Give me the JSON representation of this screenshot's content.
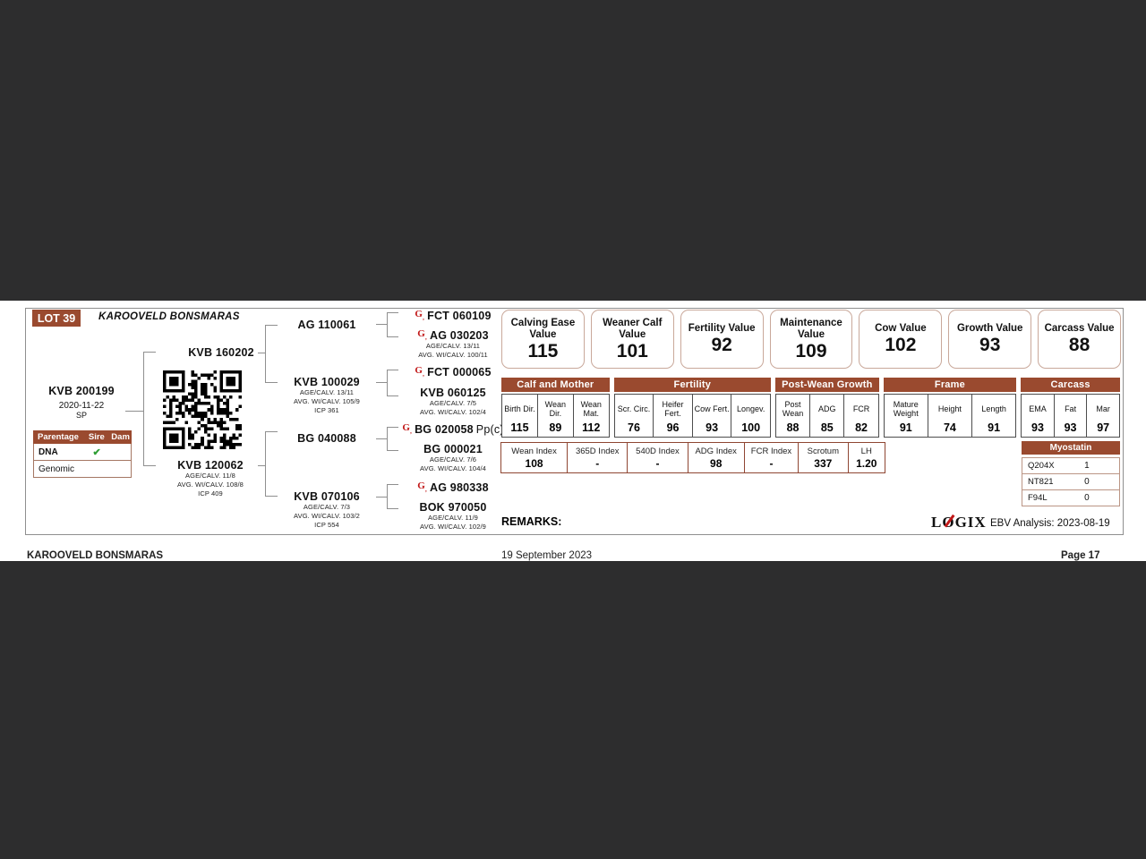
{
  "header": {
    "lot": "LOT 39",
    "title": "KAROOVELD BONSMARAS"
  },
  "pedigree": {
    "animal": {
      "name": "KVB 200199",
      "dob": "2020-11-22",
      "status": "SP"
    },
    "sire": {
      "name": "KVB 160202"
    },
    "dam": {
      "name": "KVB 120062",
      "line1": "AGE/CALV. 11/8",
      "line2": "AVG. WI/CALV. 108/8",
      "line3": "ICP 409"
    },
    "gen3": [
      {
        "name": "AG 110061"
      },
      {
        "name": "KVB 100029",
        "line1": "AGE/CALV. 13/11",
        "line2": "AVG. WI/CALV. 105/9",
        "line3": "ICP 361"
      },
      {
        "name": "BG 040088"
      },
      {
        "name": "KVB 070106",
        "line1": "AGE/CALV. 7/3",
        "line2": "AVG. WI/CALV. 103/2",
        "line3": "ICP 554"
      }
    ],
    "gen4": [
      {
        "name": "FCT 060109",
        "suffix": ""
      },
      {
        "name": "AG 030203",
        "suffix": "",
        "line1": "AGE/CALV. 13/11",
        "line2": "AVG. WI/CALV. 100/11"
      },
      {
        "name": "FCT 000065",
        "suffix": ""
      },
      {
        "name": "KVB 060125",
        "suffix": "",
        "line1": "AGE/CALV. 7/5",
        "line2": "AVG. WI/CALV. 102/4"
      },
      {
        "name": "BG 020058",
        "suffix": "Pp(c)"
      },
      {
        "name": "BG 000021",
        "suffix": "",
        "line1": "AGE/CALV. 7/6",
        "line2": "AVG. WI/CALV. 104/4"
      },
      {
        "name": "AG 980338",
        "suffix": ""
      },
      {
        "name": "BOK 970050",
        "suffix": "",
        "line1": "AGE/CALV. 11/9",
        "line2": "AVG. WI/CALV. 102/9"
      }
    ],
    "parentage": {
      "col_label": "Parentage",
      "col_sire": "Sire",
      "col_dam": "Dam",
      "rows": [
        {
          "label": "DNA",
          "sire": "✔",
          "dam": ""
        },
        {
          "label": "Genomic",
          "sire": "",
          "dam": ""
        }
      ]
    }
  },
  "values": [
    {
      "label": "Calving Ease Value",
      "value": "115"
    },
    {
      "label": "Weaner Calf Value",
      "value": "101"
    },
    {
      "label": "Fertility Value",
      "value": "92"
    },
    {
      "label": "Maintenance Value",
      "value": "109"
    },
    {
      "label": "Cow Value",
      "value": "102"
    },
    {
      "label": "Growth Value",
      "value": "93"
    },
    {
      "label": "Carcass Value",
      "value": "88"
    }
  ],
  "ebv": {
    "groups": [
      {
        "name": "Calf and Mother",
        "cols": [
          {
            "label": "Birth Dir.",
            "value": "115"
          },
          {
            "label": "Wean Dir.",
            "value": "89"
          },
          {
            "label": "Wean Mat.",
            "value": "112"
          }
        ]
      },
      {
        "name": "Fertility",
        "cols": [
          {
            "label": "Scr. Circ.",
            "value": "76"
          },
          {
            "label": "Heifer Fert.",
            "value": "96"
          },
          {
            "label": "Cow Fert.",
            "value": "93"
          },
          {
            "label": "Longev.",
            "value": "100"
          }
        ]
      },
      {
        "name": "Post-Wean Growth",
        "cols": [
          {
            "label": "Post Wean",
            "value": "88"
          },
          {
            "label": "ADG",
            "value": "85"
          },
          {
            "label": "FCR",
            "value": "82"
          }
        ]
      },
      {
        "name": "Frame",
        "cols": [
          {
            "label": "Mature Weight",
            "value": "91"
          },
          {
            "label": "Height",
            "value": "74"
          },
          {
            "label": "Length",
            "value": "91"
          }
        ]
      },
      {
        "name": "Carcass",
        "cols": [
          {
            "label": "EMA",
            "value": "93"
          },
          {
            "label": "Fat",
            "value": "93"
          },
          {
            "label": "Mar",
            "value": "97"
          }
        ]
      }
    ]
  },
  "indexes": [
    {
      "label": "Wean Index",
      "value": "108"
    },
    {
      "label": "365D Index",
      "value": "-"
    },
    {
      "label": "540D Index",
      "value": "-"
    },
    {
      "label": "ADG Index",
      "value": "98"
    },
    {
      "label": "FCR Index",
      "value": "-"
    },
    {
      "label": "Scrotum",
      "value": "337"
    },
    {
      "label": "LH",
      "value": "1.20"
    }
  ],
  "myostatin": {
    "title": "Myostatin",
    "rows": [
      {
        "gene": "Q204X",
        "value": "1"
      },
      {
        "gene": "NT821",
        "value": "0"
      },
      {
        "gene": "F94L",
        "value": "0"
      }
    ]
  },
  "remarks": {
    "label": "REMARKS:"
  },
  "logix": {
    "brand_l": "L",
    "brand_o": "O",
    "brand_gix": "GIX",
    "analysis": "EBV Analysis: 2023-08-19"
  },
  "footer": {
    "left": "KAROOVELD BONSMARAS",
    "center": "19 September 2023",
    "right": "Page 17"
  },
  "colors": {
    "brown": "#9a4a2f",
    "accent_red": "#c11818",
    "check_green": "#2f9e35",
    "viewer_bg": "#2d2d2e"
  }
}
